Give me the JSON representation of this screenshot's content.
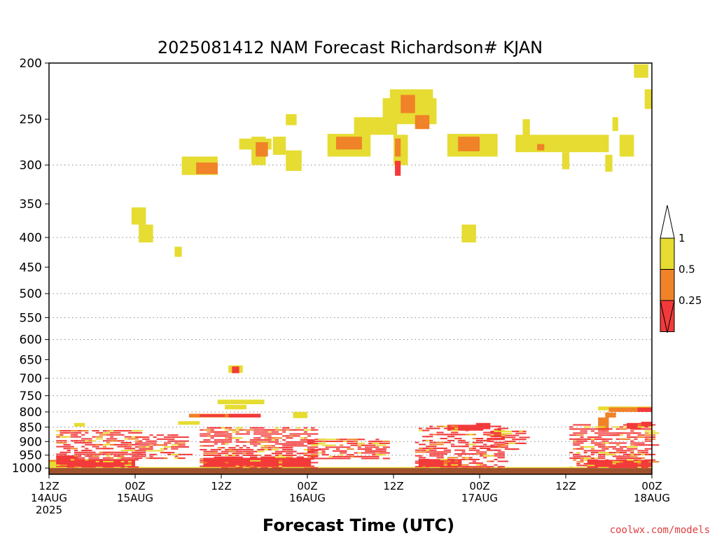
{
  "chart_data": {
    "type": "heatmap",
    "title": "2025081412 NAM Forecast Richardson# KJAN",
    "xlabel": "Forecast Time (UTC)",
    "ylabel": "",
    "y_ticks": [
      200,
      250,
      300,
      350,
      400,
      450,
      500,
      550,
      600,
      650,
      700,
      750,
      800,
      850,
      900,
      950,
      1000
    ],
    "y_gridlines": [
      300,
      400,
      500,
      550,
      600,
      700,
      750,
      800,
      850,
      900,
      950
    ],
    "y_range": [
      1025,
      200
    ],
    "y_scale": "log",
    "x_range": [
      0,
      84
    ],
    "x_ticks": [
      {
        "hours": 0,
        "lines": [
          "12Z",
          "14AUG",
          "2025"
        ]
      },
      {
        "hours": 12,
        "lines": [
          "00Z",
          "15AUG"
        ]
      },
      {
        "hours": 24,
        "lines": [
          "12Z"
        ]
      },
      {
        "hours": 36,
        "lines": [
          "00Z",
          "16AUG"
        ]
      },
      {
        "hours": 48,
        "lines": [
          "12Z"
        ]
      },
      {
        "hours": 60,
        "lines": [
          "00Z",
          "17AUG"
        ]
      },
      {
        "hours": 72,
        "lines": [
          "12Z"
        ]
      },
      {
        "hours": 84,
        "lines": [
          "00Z",
          "18AUG"
        ]
      }
    ],
    "levels": [
      {
        "name": "lt0.25",
        "color": "#f33a3a"
      },
      {
        "name": "0.25-0.5",
        "color": "#f08228"
      },
      {
        "name": "0.5-1",
        "color": "#e6dc32"
      }
    ],
    "legend": {
      "placement": "right",
      "labels": [
        "1",
        "0.5",
        "0.25"
      ],
      "colors": [
        "#e6dc32",
        "#f08228",
        "#f33a3a"
      ]
    },
    "surface_fill": {
      "color": "#a0522d",
      "from_hPa": 1000,
      "to_hPa": 1025
    },
    "regions": [
      {
        "x": [
          28.2,
          30.2
        ],
        "p": [
          268,
          300
        ],
        "level": "0.5-1"
      },
      {
        "x": [
          31.2,
          33.0
        ],
        "p": [
          268,
          288
        ],
        "level": "0.5-1"
      },
      {
        "x": [
          33.0,
          35.2
        ],
        "p": [
          283,
          307
        ],
        "level": "0.5-1"
      },
      {
        "x": [
          26.5,
          31.0
        ],
        "p": [
          270,
          282
        ],
        "level": "0.5-1"
      },
      {
        "x": [
          28.8,
          30.5
        ],
        "p": [
          274,
          290
        ],
        "level": "0.25-0.5"
      },
      {
        "x": [
          33.0,
          34.5
        ],
        "p": [
          245,
          256
        ],
        "level": "0.5-1"
      },
      {
        "x": [
          18.5,
          23.5
        ],
        "p": [
          290,
          312
        ],
        "level": "0.5-1"
      },
      {
        "x": [
          20.5,
          23.5
        ],
        "p": [
          297,
          311
        ],
        "level": "0.25-0.5"
      },
      {
        "x": [
          38.8,
          44.8
        ],
        "p": [
          265,
          290
        ],
        "level": "0.5-1"
      },
      {
        "x": [
          40.0,
          43.6
        ],
        "p": [
          268,
          282
        ],
        "level": "0.25-0.5"
      },
      {
        "x": [
          42.5,
          48.5
        ],
        "p": [
          248,
          266
        ],
        "level": "0.5-1"
      },
      {
        "x": [
          46.5,
          54.0
        ],
        "p": [
          230,
          255
        ],
        "level": "0.5-1"
      },
      {
        "x": [
          47.5,
          53.5
        ],
        "p": [
          222,
          232
        ],
        "level": "0.5-1"
      },
      {
        "x": [
          48.0,
          50.0
        ],
        "p": [
          266,
          300
        ],
        "level": "0.5-1"
      },
      {
        "x": [
          48.2,
          49.0
        ],
        "p": [
          270,
          290
        ],
        "level": "0.25-0.5"
      },
      {
        "x": [
          48.2,
          49.0
        ],
        "p": [
          295,
          313
        ],
        "level": "lt0.25"
      },
      {
        "x": [
          49.0,
          51.0
        ],
        "p": [
          227,
          244
        ],
        "level": "0.25-0.5"
      },
      {
        "x": [
          51.0,
          53.0
        ],
        "p": [
          246,
          260
        ],
        "level": "0.25-0.5"
      },
      {
        "x": [
          55.5,
          62.5
        ],
        "p": [
          265,
          290
        ],
        "level": "0.5-1"
      },
      {
        "x": [
          57.0,
          60.0
        ],
        "p": [
          268,
          284
        ],
        "level": "0.25-0.5"
      },
      {
        "x": [
          65.0,
          78.0
        ],
        "p": [
          266,
          285
        ],
        "level": "0.5-1"
      },
      {
        "x": [
          66.0,
          67.0
        ],
        "p": [
          250,
          268
        ],
        "level": "0.5-1"
      },
      {
        "x": [
          68.0,
          69.0
        ],
        "p": [
          276,
          283
        ],
        "level": "0.25-0.5"
      },
      {
        "x": [
          71.5,
          72.5
        ],
        "p": [
          285,
          305
        ],
        "level": "0.5-1"
      },
      {
        "x": [
          77.5,
          78.5
        ],
        "p": [
          288,
          308
        ],
        "level": "0.5-1"
      },
      {
        "x": [
          79.5,
          81.5
        ],
        "p": [
          266,
          290
        ],
        "level": "0.5-1"
      },
      {
        "x": [
          78.5,
          79.3
        ],
        "p": [
          248,
          262
        ],
        "level": "0.5-1"
      },
      {
        "x": [
          81.5,
          83.5
        ],
        "p": [
          201,
          212
        ],
        "level": "0.5-1"
      },
      {
        "x": [
          83.0,
          84.0
        ],
        "p": [
          222,
          240
        ],
        "level": "0.5-1"
      },
      {
        "x": [
          11.5,
          13.5
        ],
        "p": [
          355,
          380
        ],
        "level": "0.5-1"
      },
      {
        "x": [
          12.5,
          14.5
        ],
        "p": [
          380,
          408
        ],
        "level": "0.5-1"
      },
      {
        "x": [
          17.5,
          18.5
        ],
        "p": [
          415,
          432
        ],
        "level": "0.5-1"
      },
      {
        "x": [
          57.5,
          59.5
        ],
        "p": [
          380,
          408
        ],
        "level": "0.5-1"
      },
      {
        "x": [
          25.0,
          27.0
        ],
        "p": [
          665,
          685
        ],
        "level": "0.5-1"
      },
      {
        "x": [
          25.5,
          26.5
        ],
        "p": [
          668,
          686
        ],
        "level": "lt0.25"
      },
      {
        "x": [
          23.5,
          30.0
        ],
        "p": [
          762,
          776
        ],
        "level": "0.5-1"
      },
      {
        "x": [
          24.5,
          27.5
        ],
        "p": [
          778,
          792
        ],
        "level": "0.5-1"
      },
      {
        "x": [
          19.5,
          25.0
        ],
        "p": [
          806,
          818
        ],
        "level": "0.25-0.5"
      },
      {
        "x": [
          21.0,
          24.5
        ],
        "p": [
          808,
          816
        ],
        "level": "lt0.25"
      },
      {
        "x": [
          25.0,
          29.5
        ],
        "p": [
          806,
          818
        ],
        "level": "lt0.25"
      },
      {
        "x": [
          34.0,
          36.0
        ],
        "p": [
          800,
          820
        ],
        "level": "0.5-1"
      },
      {
        "x": [
          18.0,
          21.0
        ],
        "p": [
          830,
          842
        ],
        "level": "0.5-1"
      },
      {
        "x": [
          3.5,
          5.0
        ],
        "p": [
          836,
          848
        ],
        "level": "0.5-1"
      },
      {
        "x": [
          76.5,
          84.0
        ],
        "p": [
          783,
          795
        ],
        "level": "0.5-1"
      },
      {
        "x": [
          78.0,
          84.0
        ],
        "p": [
          786,
          800
        ],
        "level": "0.25-0.5"
      },
      {
        "x": [
          82.0,
          84.0
        ],
        "p": [
          786,
          800
        ],
        "level": "lt0.25"
      },
      {
        "x": [
          77.5,
          79.0
        ],
        "p": [
          802,
          818
        ],
        "level": "0.25-0.5"
      },
      {
        "x": [
          76.5,
          78.0
        ],
        "p": [
          818,
          860
        ],
        "level": "0.25-0.5"
      },
      {
        "x": [
          82.5,
          84.0
        ],
        "p": [
          832,
          852
        ],
        "level": "lt0.25"
      },
      {
        "x": [
          80.5,
          82.5
        ],
        "p": [
          836,
          856
        ],
        "level": "lt0.25"
      },
      {
        "x": [
          55.5,
          60.5
        ],
        "p": [
          842,
          862
        ],
        "level": "lt0.25"
      },
      {
        "x": [
          59.5,
          61.5
        ],
        "p": [
          836,
          852
        ],
        "level": "lt0.25"
      },
      {
        "x": [
          0.0,
          1.0
        ],
        "p": [
          968,
          1000
        ],
        "level": "0.25-0.5"
      },
      {
        "x": [
          0.0,
          1.5
        ],
        "p": [
          975,
          1000
        ],
        "level": "0.5-1"
      },
      {
        "x": [
          1.0,
          4.0
        ],
        "p": [
          952,
          1000
        ],
        "level": "lt0.25"
      },
      {
        "x": [
          4.0,
          12.0
        ],
        "p": [
          965,
          996
        ],
        "level": "lt0.25"
      },
      {
        "x": [
          21.5,
          36.5
        ],
        "p": [
          960,
          998
        ],
        "level": "lt0.25"
      },
      {
        "x": [
          51.5,
          57.5
        ],
        "p": [
          965,
          1000
        ],
        "level": "lt0.25"
      },
      {
        "x": [
          75.0,
          84.0
        ],
        "p": [
          968,
          998
        ],
        "level": "lt0.25"
      },
      {
        "x": [
          0.0,
          84.0
        ],
        "p": [
          996,
          1000
        ],
        "level": "0.5-1"
      }
    ],
    "noise_bands": [
      {
        "x": [
          1.0,
          12.0
        ],
        "p": [
          860,
          1000
        ],
        "seed": 3
      },
      {
        "x": [
          12.0,
          19.0
        ],
        "p": [
          875,
          960
        ],
        "seed": 7
      },
      {
        "x": [
          21.0,
          37.0
        ],
        "p": [
          850,
          1000
        ],
        "seed": 11
      },
      {
        "x": [
          36.0,
          47.0
        ],
        "p": [
          890,
          965
        ],
        "seed": 17
      },
      {
        "x": [
          51.0,
          63.0
        ],
        "p": [
          845,
          1000
        ],
        "seed": 23
      },
      {
        "x": [
          61.0,
          66.0
        ],
        "p": [
          855,
          930
        ],
        "seed": 29
      },
      {
        "x": [
          72.5,
          84.0
        ],
        "p": [
          840,
          1000
        ],
        "seed": 31
      }
    ]
  },
  "credit": {
    "text": "coolwx.com/models",
    "color": "#e03c3c"
  }
}
